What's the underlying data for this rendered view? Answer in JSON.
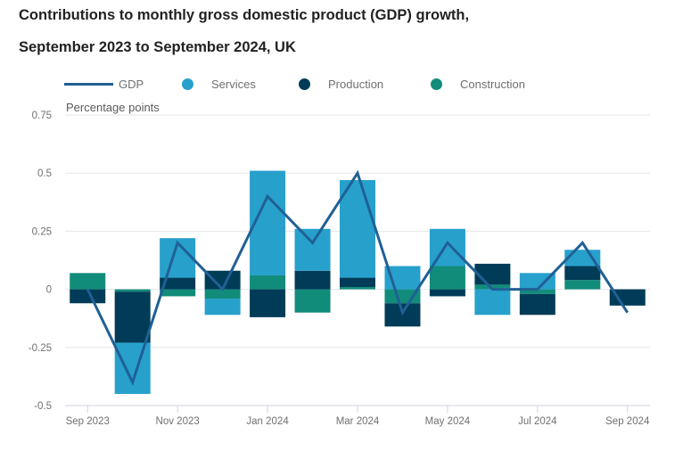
{
  "title_line1": "Contributions to monthly gross domestic product (GDP) growth,",
  "title_line2": "September 2023 to September 2024, UK",
  "legend": [
    {
      "label": "GDP",
      "kind": "line",
      "color": "#206095"
    },
    {
      "label": "Services",
      "kind": "dot",
      "color": "#27a0cc"
    },
    {
      "label": "Production",
      "kind": "dot",
      "color": "#003c57"
    },
    {
      "label": "Construction",
      "kind": "dot",
      "color": "#118c7b"
    }
  ],
  "chart_data": {
    "type": "bar",
    "stacked": true,
    "title": "Contributions to monthly gross domestic product (GDP) growth, September 2023 to September 2024, UK",
    "xlabel": "",
    "ylabel": "Percentage points",
    "ylim": [
      -0.5,
      0.75
    ],
    "yticks": [
      0.75,
      0.5,
      0.25,
      0,
      -0.25,
      -0.5
    ],
    "ytick_labels": [
      "0.75",
      "0.5",
      "0.25",
      "0",
      "-0.25",
      "-0.5"
    ],
    "grid": true,
    "legend_position": "top-left",
    "categories": [
      "Sep 2023",
      "Oct 2023",
      "Nov 2023",
      "Dec 2023",
      "Jan 2024",
      "Feb 2024",
      "Mar 2024",
      "Apr 2024",
      "May 2024",
      "Jun 2024",
      "Jul 2024",
      "Aug 2024",
      "Sep 2024"
    ],
    "xtick_labels": [
      "Sep 2023",
      "Nov 2023",
      "Jan 2024",
      "Mar 2024",
      "May 2024",
      "Jul 2024",
      "Sep 2024"
    ],
    "xtick_indices": [
      0,
      2,
      4,
      6,
      8,
      10,
      12
    ],
    "series": [
      {
        "name": "Services",
        "type": "bar",
        "color": "#27a0cc",
        "values": [
          0.0,
          -0.22,
          0.17,
          -0.07,
          0.45,
          0.18,
          0.42,
          0.1,
          0.16,
          -0.11,
          0.07,
          0.07,
          0.0
        ]
      },
      {
        "name": "Production",
        "type": "bar",
        "color": "#003c57",
        "values": [
          -0.06,
          -0.22,
          0.05,
          0.08,
          -0.12,
          0.08,
          0.04,
          -0.1,
          -0.03,
          0.09,
          -0.09,
          0.06,
          -0.07
        ]
      },
      {
        "name": "Construction",
        "type": "bar",
        "color": "#118c7b",
        "values": [
          0.07,
          -0.01,
          -0.03,
          -0.04,
          0.06,
          -0.1,
          0.01,
          -0.06,
          0.1,
          0.02,
          -0.02,
          0.04,
          0.0
        ]
      },
      {
        "name": "GDP",
        "type": "line",
        "color": "#206095",
        "values": [
          0.0,
          -0.4,
          0.2,
          0.0,
          0.4,
          0.2,
          0.5,
          -0.1,
          0.2,
          0.0,
          0.0,
          0.2,
          -0.1
        ]
      }
    ]
  }
}
